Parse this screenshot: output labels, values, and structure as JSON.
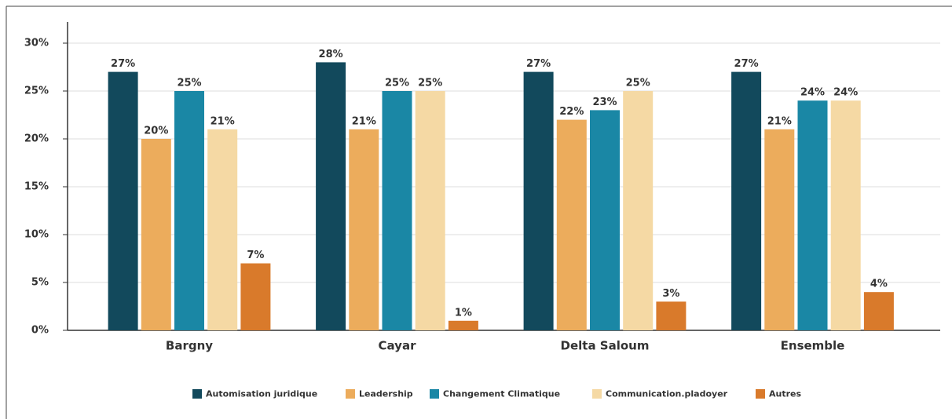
{
  "chart_data": {
    "type": "bar",
    "categories": [
      "Bargny",
      "Cayar",
      "Delta Saloum",
      "Ensemble"
    ],
    "series": [
      {
        "name": "Automisation juridique",
        "color": "#12495c",
        "values": [
          27,
          28,
          27,
          27
        ],
        "value_labels": [
          "27%",
          "28%",
          "27%",
          "27%"
        ]
      },
      {
        "name": "Leadership",
        "color": "#ecac5c",
        "values": [
          20,
          21,
          22,
          21
        ],
        "value_labels": [
          "20%",
          "21%",
          "22%",
          "21%"
        ]
      },
      {
        "name": "Changement Climatique",
        "color": "#1a87a5",
        "values": [
          25,
          25,
          23,
          24
        ],
        "value_labels": [
          "25%",
          "25%",
          "23%",
          "24%"
        ]
      },
      {
        "name": "Communication.pladoyer",
        "color": "#f5d9a4",
        "values": [
          21,
          25,
          25,
          24
        ],
        "value_labels": [
          "21%",
          "25%",
          "25%",
          "24%"
        ]
      },
      {
        "name": "Autres",
        "color": "#d97a2b",
        "values": [
          7,
          1,
          3,
          4
        ],
        "value_labels": [
          "7%",
          "1%",
          "3%",
          "4%"
        ]
      }
    ],
    "ylim": [
      0,
      30
    ],
    "yticks": [
      {
        "value": 0,
        "label": "0%"
      },
      {
        "value": 5,
        "label": "5%"
      },
      {
        "value": 10,
        "label": "10%"
      },
      {
        "value": 15,
        "label": "15%"
      },
      {
        "value": 20,
        "label": "20%"
      },
      {
        "value": 25,
        "label": "25%"
      },
      {
        "value": 30,
        "label": "30%"
      }
    ],
    "grid": true,
    "legend": "bottom"
  }
}
